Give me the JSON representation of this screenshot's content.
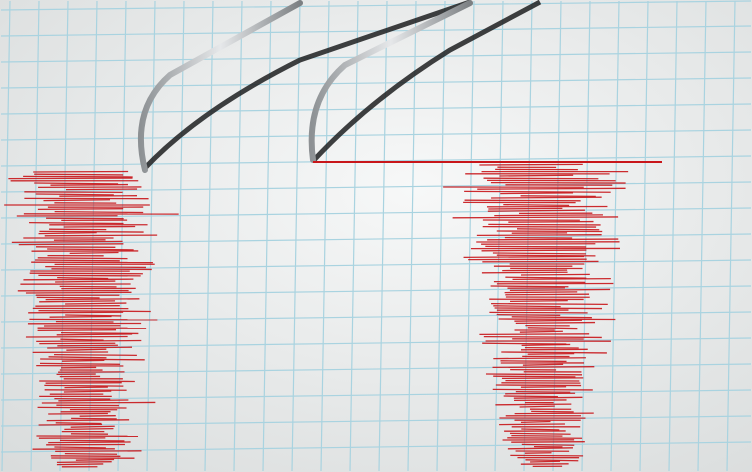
{
  "image": {
    "subject": "seismograph",
    "colors": {
      "paper": "#eef0f0",
      "grid": "#a9d3e0",
      "trace": "#c8161a",
      "needle": "#b9bcbf"
    },
    "icons": [
      "needle-left",
      "needle-right"
    ]
  }
}
